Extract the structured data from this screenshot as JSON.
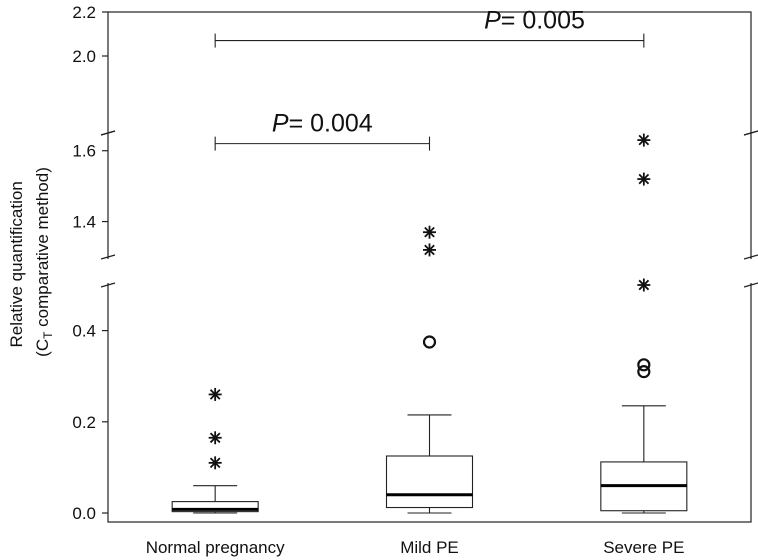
{
  "chart_data": {
    "type": "box",
    "ylabel_line1": "Relative quantification",
    "ylabel_line2_prefix": "(C",
    "ylabel_line2_sub": "T",
    "ylabel_line2_suffix": " comparative method)",
    "y_scale": "broken (three segments)",
    "y_segments": [
      [
        0.0,
        0.5
      ],
      [
        1.3,
        1.65
      ],
      [
        1.65,
        2.2
      ]
    ],
    "y_ticks": [
      {
        "value": 0.0,
        "label": "0.0"
      },
      {
        "value": 0.2,
        "label": "0.2"
      },
      {
        "value": 0.4,
        "label": "0.4"
      },
      {
        "value": 1.4,
        "label": "1.4"
      },
      {
        "value": 1.6,
        "label": "1.6"
      },
      {
        "value": 2.0,
        "label": "2.0"
      },
      {
        "value": 2.2,
        "label": "2.2"
      }
    ],
    "categories": [
      "Normal pregnancy",
      "Mild PE",
      "Severe PE"
    ],
    "boxes": [
      {
        "name": "Normal pregnancy",
        "whisker_low": 0.0,
        "q1": 0.003,
        "median": 0.008,
        "q3": 0.025,
        "whisker_high": 0.06,
        "outliers": [],
        "extremes": [
          0.11,
          0.165,
          0.26
        ]
      },
      {
        "name": "Mild PE",
        "whisker_low": 0.0,
        "q1": 0.012,
        "median": 0.04,
        "q3": 0.125,
        "whisker_high": 0.215,
        "outliers": [
          0.375
        ],
        "extremes": [
          1.32,
          1.37
        ]
      },
      {
        "name": "Severe PE",
        "whisker_low": 0.0,
        "q1": 0.005,
        "median": 0.06,
        "q3": 0.112,
        "whisker_high": 0.235,
        "outliers": [
          0.31,
          0.325
        ],
        "extremes": [
          0.5,
          1.52,
          1.63
        ]
      }
    ],
    "annotations": [
      {
        "from": "Normal pregnancy",
        "to": "Mild PE",
        "p_label": "P",
        "text": "= 0.004",
        "y_value": 1.62
      },
      {
        "from": "Normal pregnancy",
        "to": "Severe PE",
        "p_label": "P",
        "text": "= 0.005",
        "y_value": 2.07
      }
    ],
    "grid": false,
    "legend": "none"
  }
}
